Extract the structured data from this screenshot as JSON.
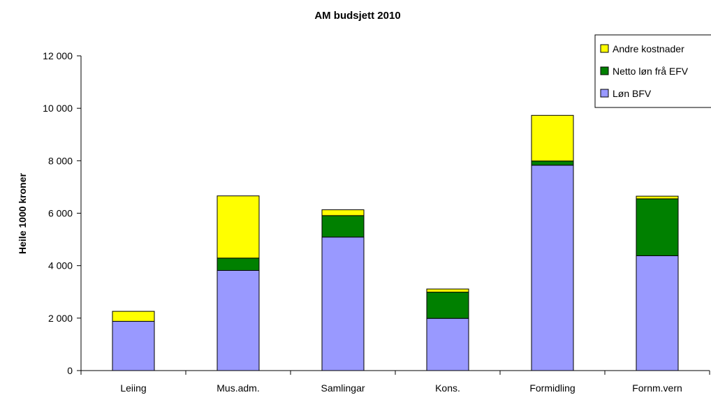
{
  "chart_data": {
    "type": "bar",
    "stacked": true,
    "title": "AM budsjett 2010",
    "xlabel": "",
    "ylabel": "Heile 1000 kroner",
    "ylim": [
      0,
      12000
    ],
    "yticks": [
      0,
      2000,
      4000,
      6000,
      8000,
      10000,
      12000
    ],
    "ytick_labels": [
      "0",
      "2 000",
      "4 000",
      "6 000",
      "8 000",
      "10 000",
      "12 000"
    ],
    "categories": [
      "Leiing",
      "Mus.adm.",
      "Samlingar",
      "Kons.",
      "Formidling",
      "Fornm.vern"
    ],
    "series": [
      {
        "name": "Løn BFV",
        "color": "#9999ff",
        "values": [
          1880,
          3820,
          5090,
          1990,
          7830,
          4380
        ]
      },
      {
        "name": "Netto løn frå EFV",
        "color": "#008000",
        "values": [
          0,
          470,
          820,
          1000,
          160,
          2170
        ]
      },
      {
        "name": "Andre kostnader",
        "color": "#ffff00",
        "values": [
          380,
          2370,
          220,
          120,
          1740,
          100
        ]
      }
    ],
    "legend": {
      "position": "top-right",
      "entries": [
        "Andre kostnader",
        "Netto løn frå EFV",
        "Løn BFV"
      ]
    },
    "grid": false
  }
}
